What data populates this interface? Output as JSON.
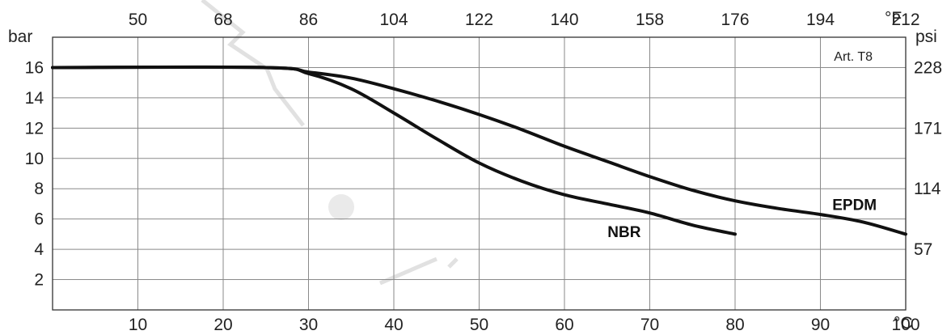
{
  "chart_data": {
    "type": "line",
    "xlabel": "°C",
    "ylabel": "bar",
    "xlim": [
      0,
      100
    ],
    "ylim": [
      0,
      18
    ],
    "x_ticks": [
      10,
      20,
      30,
      40,
      50,
      60,
      70,
      80,
      90,
      100
    ],
    "y_ticks": [
      2,
      4,
      6,
      8,
      10,
      12,
      14,
      16
    ],
    "grid": true,
    "legend": "none",
    "top_axis": {
      "label": "°F",
      "ticks": [
        "50",
        "68",
        "86",
        "104",
        "122",
        "140",
        "158",
        "176",
        "194",
        "212"
      ]
    },
    "right_axis": {
      "label": "psi",
      "ticks": [
        {
          "label": "228",
          "bar": 16
        },
        {
          "label": "171",
          "bar": 12
        },
        {
          "label": "114",
          "bar": 8
        },
        {
          "label": "57",
          "bar": 4
        }
      ]
    },
    "annotation": "Art. T8",
    "series": [
      {
        "name": "NBR",
        "label_at": {
          "x": 67,
          "y": 4.8
        },
        "points": [
          [
            0,
            16
          ],
          [
            25,
            16
          ],
          [
            30,
            15.6
          ],
          [
            35,
            14.6
          ],
          [
            40,
            13
          ],
          [
            45,
            11.3
          ],
          [
            50,
            9.7
          ],
          [
            55,
            8.5
          ],
          [
            60,
            7.6
          ],
          [
            65,
            7
          ],
          [
            70,
            6.4
          ],
          [
            75,
            5.6
          ],
          [
            80,
            5
          ]
        ]
      },
      {
        "name": "EPDM",
        "label_at": {
          "x": 94,
          "y": 6.6
        },
        "points": [
          [
            0,
            16
          ],
          [
            25,
            16
          ],
          [
            30,
            15.7
          ],
          [
            35,
            15.3
          ],
          [
            40,
            14.6
          ],
          [
            45,
            13.8
          ],
          [
            50,
            12.9
          ],
          [
            55,
            11.9
          ],
          [
            60,
            10.8
          ],
          [
            65,
            9.8
          ],
          [
            70,
            8.8
          ],
          [
            75,
            7.9
          ],
          [
            80,
            7.2
          ],
          [
            85,
            6.7
          ],
          [
            90,
            6.3
          ],
          [
            95,
            5.8
          ],
          [
            100,
            5
          ]
        ]
      }
    ]
  }
}
